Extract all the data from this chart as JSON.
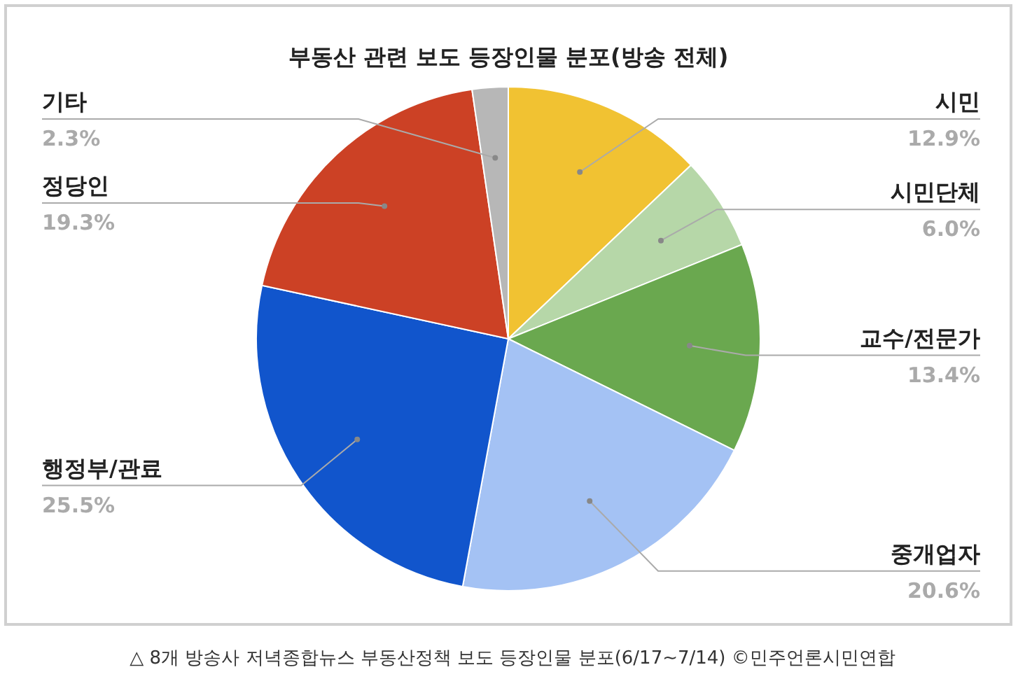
{
  "chart_data": {
    "type": "pie",
    "title": "부동산 관련 보도 등장인물 분포(방송 전체)",
    "categories": [
      "시민",
      "시민단체",
      "교수/전문가",
      "중개업자",
      "행정부/관료",
      "정당인",
      "기타"
    ],
    "values": [
      12.9,
      6.0,
      13.4,
      20.6,
      25.5,
      19.3,
      2.3
    ],
    "colors": [
      "#f1c232",
      "#b6d7a8",
      "#6aa84f",
      "#a4c2f4",
      "#1155cc",
      "#cc4125",
      "#b7b7b7"
    ],
    "value_labels": [
      "12.9%",
      "6.0%",
      "13.4%",
      "20.6%",
      "25.5%",
      "19.3%",
      "2.3%"
    ],
    "annotations": [
      "△ 8개 방송사 저녁종합뉴스 부동산정책 보도 등장인물 분포(6/17~7/14) ©민주언론시민연합"
    ]
  }
}
